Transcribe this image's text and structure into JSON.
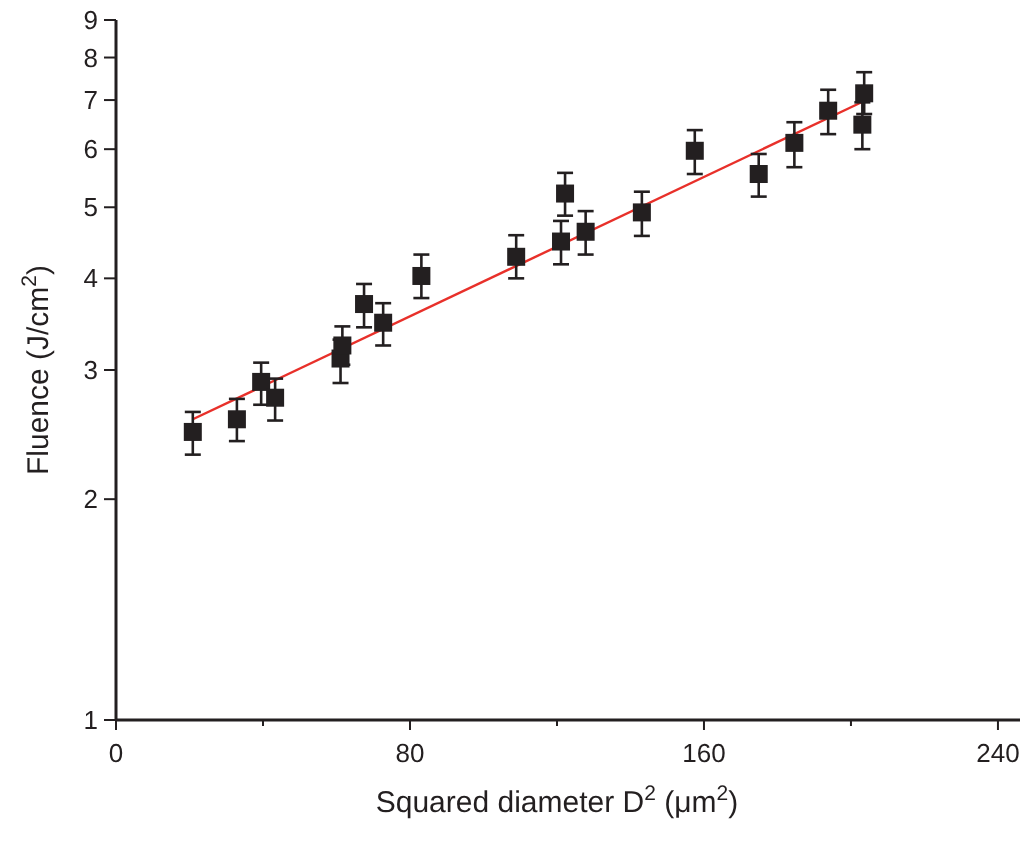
{
  "chart_data": {
    "type": "scatter",
    "xlabel": "Squared diameter D$^{2}$ (μm$^{2}$)",
    "ylabel": "Fluence (J/cm$^{2}$)",
    "log": "y",
    "grid": false,
    "xlim": [
      0,
      246
    ],
    "ylim": [
      1,
      9
    ],
    "xticks": [
      0,
      {
        "value": 40,
        "label": null
      },
      80,
      {
        "value": 120,
        "label": null
      },
      160,
      {
        "value": 200,
        "label": null
      },
      240
    ],
    "yticks": [
      1,
      2,
      3,
      4,
      5,
      6,
      7,
      8,
      9
    ],
    "series": [
      {
        "type": "scatter",
        "color": "#231f20",
        "marker": "square",
        "x": [
          20.9,
          32.9,
          39.5,
          43.3,
          61.1,
          61.6,
          67.5,
          72.7,
          83.1,
          108.9,
          121.1,
          122.2,
          127.8,
          143.1,
          157.5,
          174.9,
          184.6,
          193.8,
          203.6,
          203.1
        ],
        "values": [
          2.47,
          2.57,
          2.89,
          2.75,
          3.11,
          3.24,
          3.69,
          3.48,
          4.03,
          4.28,
          4.49,
          5.22,
          4.63,
          4.92,
          5.97,
          5.55,
          6.12,
          6.77,
          7.15,
          6.48
        ],
        "errors": [
          [
            2.3,
            2.63
          ],
          [
            2.4,
            2.74
          ],
          [
            2.69,
            3.07
          ],
          [
            2.56,
            2.92
          ],
          [
            2.88,
            3.3
          ],
          [
            3.05,
            3.44
          ],
          [
            3.43,
            3.93
          ],
          [
            3.24,
            3.7
          ],
          [
            3.76,
            4.31
          ],
          [
            4.0,
            4.58
          ],
          [
            4.18,
            4.79
          ],
          [
            4.87,
            5.57
          ],
          [
            4.31,
            4.94
          ],
          [
            4.57,
            5.25
          ],
          [
            5.55,
            6.37
          ],
          [
            5.17,
            5.91
          ],
          [
            5.67,
            6.53
          ],
          [
            6.29,
            7.23
          ],
          [
            6.7,
            7.64
          ],
          [
            6.0,
            6.95
          ]
        ]
      },
      {
        "type": "line",
        "color": "#e8302a",
        "marker": "none",
        "line_style": "solid",
        "x": [
          20.9,
          203.6
        ],
        "values": [
          2.57,
          6.98
        ]
      }
    ]
  }
}
